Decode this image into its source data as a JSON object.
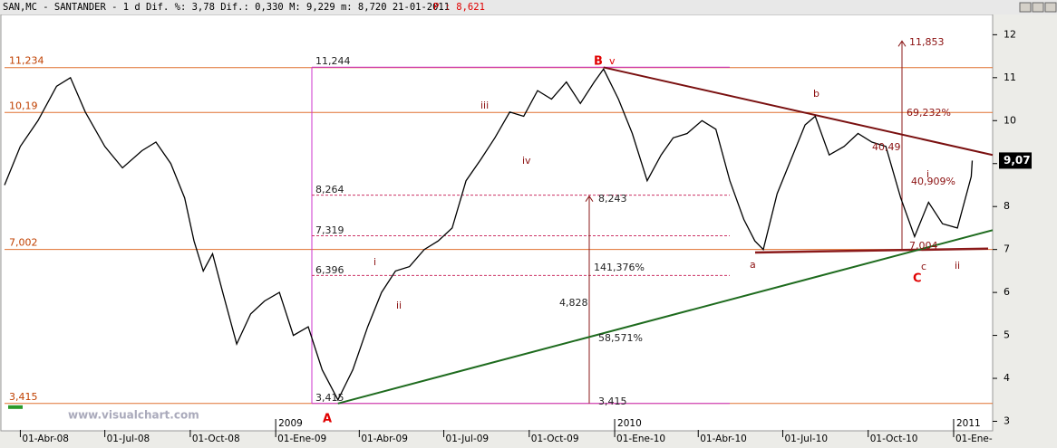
{
  "chart_data": {
    "type": "line",
    "header": "SAN,MC - SANTANDER -  1 d Dif. %: 3,78 Dif.: 0,330 M: 9,229 m: 8,720 21-01-2011",
    "header_price": "P : 8,621",
    "watermark": "www.visualchart.com",
    "x": [
      "2008-03-15",
      "2008-04-01",
      "2008-04-20",
      "2008-05-10",
      "2008-05-25",
      "2008-06-10",
      "2008-07-01",
      "2008-07-20",
      "2008-08-10",
      "2008-08-25",
      "2008-09-10",
      "2008-09-25",
      "2008-10-05",
      "2008-10-15",
      "2008-10-25",
      "2008-11-05",
      "2008-11-20",
      "2008-12-05",
      "2008-12-20",
      "2009-01-05",
      "2009-01-20",
      "2009-02-05",
      "2009-02-20",
      "2009-03-09",
      "2009-03-25",
      "2009-04-10",
      "2009-04-25",
      "2009-05-10",
      "2009-05-25",
      "2009-06-10",
      "2009-06-25",
      "2009-07-10",
      "2009-07-25",
      "2009-08-10",
      "2009-08-25",
      "2009-09-10",
      "2009-09-25",
      "2009-10-10",
      "2009-10-25",
      "2009-11-10",
      "2009-11-25",
      "2009-12-10",
      "2009-12-20",
      "2010-01-05",
      "2010-01-20",
      "2010-02-05",
      "2010-02-20",
      "2010-03-05",
      "2010-03-20",
      "2010-04-05",
      "2010-04-20",
      "2010-05-05",
      "2010-05-20",
      "2010-06-01",
      "2010-06-10",
      "2010-06-25",
      "2010-07-10",
      "2010-07-25",
      "2010-08-05",
      "2010-08-20",
      "2010-09-05",
      "2010-09-20",
      "2010-10-05",
      "2010-10-20",
      "2010-11-05",
      "2010-11-20",
      "2010-12-05",
      "2010-12-20",
      "2011-01-05",
      "2011-01-20",
      "2011-01-21"
    ],
    "series": [
      {
        "name": "SANTANDER",
        "color": "#000000",
        "values": [
          8.5,
          9.4,
          10.0,
          10.8,
          11.0,
          10.2,
          9.4,
          8.9,
          9.3,
          9.5,
          9.0,
          8.2,
          7.2,
          6.5,
          6.9,
          6.0,
          4.8,
          5.5,
          5.8,
          6.0,
          5.0,
          5.2,
          4.2,
          3.5,
          4.2,
          5.2,
          6.0,
          6.5,
          6.6,
          7.0,
          7.2,
          7.5,
          8.6,
          9.1,
          9.6,
          10.2,
          10.1,
          10.7,
          10.5,
          10.9,
          10.4,
          10.9,
          11.2,
          10.5,
          9.7,
          8.6,
          9.2,
          9.6,
          9.7,
          10.0,
          9.8,
          8.6,
          7.7,
          7.2,
          7.0,
          8.3,
          9.1,
          9.9,
          10.1,
          9.2,
          9.4,
          9.7,
          9.5,
          9.4,
          8.2,
          7.3,
          8.1,
          7.6,
          7.5,
          8.7,
          9.07
        ]
      }
    ],
    "xlim": [
      "2008-03-15",
      "2011-02-12"
    ],
    "xticks": [
      {
        "value": "2008-04-01",
        "label": "01-Abr-08"
      },
      {
        "value": "2008-07-01",
        "label": "01-Jul-08"
      },
      {
        "value": "2008-10-01",
        "label": "01-Oct-08"
      },
      {
        "value": "2009-01-01",
        "label": "01-Ene-09"
      },
      {
        "value": "2009-04-01",
        "label": "01-Abr-09"
      },
      {
        "value": "2009-07-01",
        "label": "01-Jul-09"
      },
      {
        "value": "2009-10-01",
        "label": "01-Oct-09"
      },
      {
        "value": "2010-01-01",
        "label": "01-Ene-10"
      },
      {
        "value": "2010-04-01",
        "label": "01-Abr-10"
      },
      {
        "value": "2010-07-01",
        "label": "01-Jul-10"
      },
      {
        "value": "2010-10-01",
        "label": "01-Oct-10"
      },
      {
        "value": "2011-01-01",
        "label": "01-Ene-"
      }
    ],
    "year_labels": [
      {
        "value": "2009-01-01",
        "label": "2009"
      },
      {
        "value": "2010-01-01",
        "label": "2010"
      },
      {
        "value": "2011-01-01",
        "label": "2011"
      }
    ],
    "ylim": [
      2.8,
      12.45
    ],
    "yticks": [
      3,
      4,
      5,
      6,
      7,
      8,
      9,
      10,
      11,
      12
    ],
    "price_box": {
      "value": 9.07,
      "label": "9,07"
    },
    "levels": [
      {
        "value": 11.234,
        "label": "11,234"
      },
      {
        "value": 10.19,
        "label": "10,19"
      },
      {
        "value": 7.002,
        "label": "7,002"
      },
      {
        "value": 3.415,
        "label": "3,415"
      }
    ],
    "fib_levels": [
      {
        "value": 8.264,
        "label": "8,264"
      },
      {
        "value": 7.319,
        "label": "7,319"
      },
      {
        "value": 6.396,
        "label": "6,396"
      }
    ],
    "trendlines": [
      {
        "color": "#1e6b1e",
        "points": [
          [
            "2009-03-09",
            3.415
          ],
          [
            "2011-02-12",
            7.45
          ]
        ]
      },
      {
        "color": "#7a1010",
        "points": [
          [
            "2009-12-20",
            11.24
          ],
          [
            "2011-02-12",
            9.2
          ]
        ]
      }
    ],
    "annotations": [
      "11,244",
      "B",
      "v",
      "iii",
      "iv",
      "i",
      "ii",
      "A",
      "8,264",
      "7,319",
      "6,396",
      "141,376%",
      "4,828",
      "58,571%",
      "8,243",
      "3,415",
      "3,415",
      "11,853",
      "69,232%",
      "b",
      "a",
      "40,49",
      "40,909%",
      "7,004",
      "c",
      "C",
      "ii",
      "i"
    ]
  }
}
